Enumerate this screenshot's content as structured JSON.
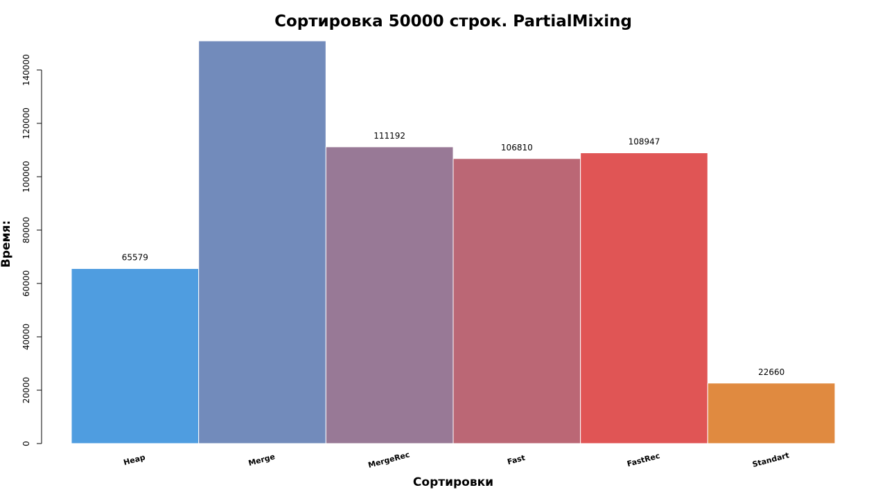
{
  "chart_data": {
    "type": "bar",
    "title": "Сортировка 50000 строк. PartialMixing",
    "x_label": "Сортировки",
    "y_label": "Время:",
    "categories": [
      "Heap",
      "Merge",
      "MergeRec",
      "Fast",
      "FastRec",
      "Standart"
    ],
    "values": [
      65579,
      150900,
      111192,
      106810,
      108947,
      22660
    ],
    "colors": [
      "#4f9de0",
      "#728bbb",
      "#987996",
      "#bb6775",
      "#e05555",
      "#e08a40"
    ],
    "ylim": [
      0,
      150900
    ],
    "yticks": [
      0,
      20000,
      40000,
      60000,
      80000,
      100000,
      120000,
      140000
    ],
    "grid": false
  }
}
